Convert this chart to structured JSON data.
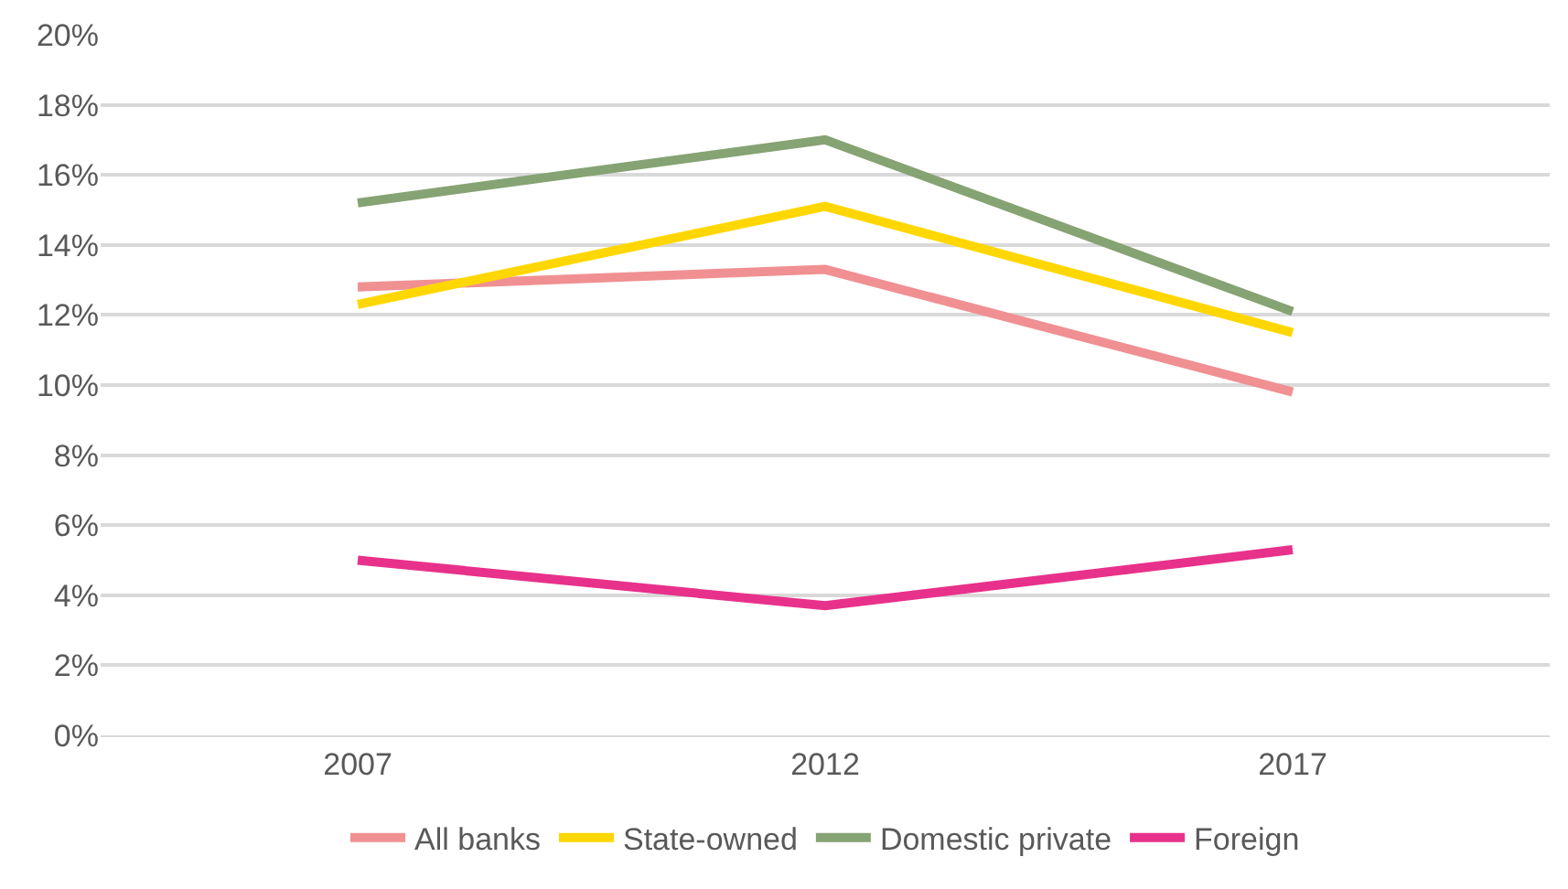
{
  "chart_data": {
    "type": "line",
    "categories": [
      "2007",
      "2012",
      "2017"
    ],
    "series": [
      {
        "name": "All banks",
        "color": "#f09092",
        "values": [
          12.8,
          13.3,
          9.8
        ]
      },
      {
        "name": "State-owned",
        "color": "#ffd700",
        "values": [
          12.3,
          15.1,
          11.5
        ]
      },
      {
        "name": "Domestic private",
        "color": "#86a373",
        "values": [
          15.2,
          17.0,
          12.1
        ]
      },
      {
        "name": "Foreign",
        "color": "#e8318a",
        "values": [
          5.0,
          3.7,
          5.3
        ]
      }
    ],
    "ylim": [
      0,
      20
    ],
    "yticks": [
      {
        "value": 0,
        "label": "0%"
      },
      {
        "value": 2,
        "label": "2%"
      },
      {
        "value": 4,
        "label": "4%"
      },
      {
        "value": 6,
        "label": "6%"
      },
      {
        "value": 8,
        "label": "8%"
      },
      {
        "value": 10,
        "label": "10%"
      },
      {
        "value": 12,
        "label": "12%"
      },
      {
        "value": 14,
        "label": "14%"
      },
      {
        "value": 16,
        "label": "16%"
      },
      {
        "value": 18,
        "label": "18%"
      },
      {
        "value": 20,
        "label": "20%"
      }
    ],
    "grid": "y",
    "legend": "bottom",
    "marker": "none",
    "line_style": "solid"
  }
}
